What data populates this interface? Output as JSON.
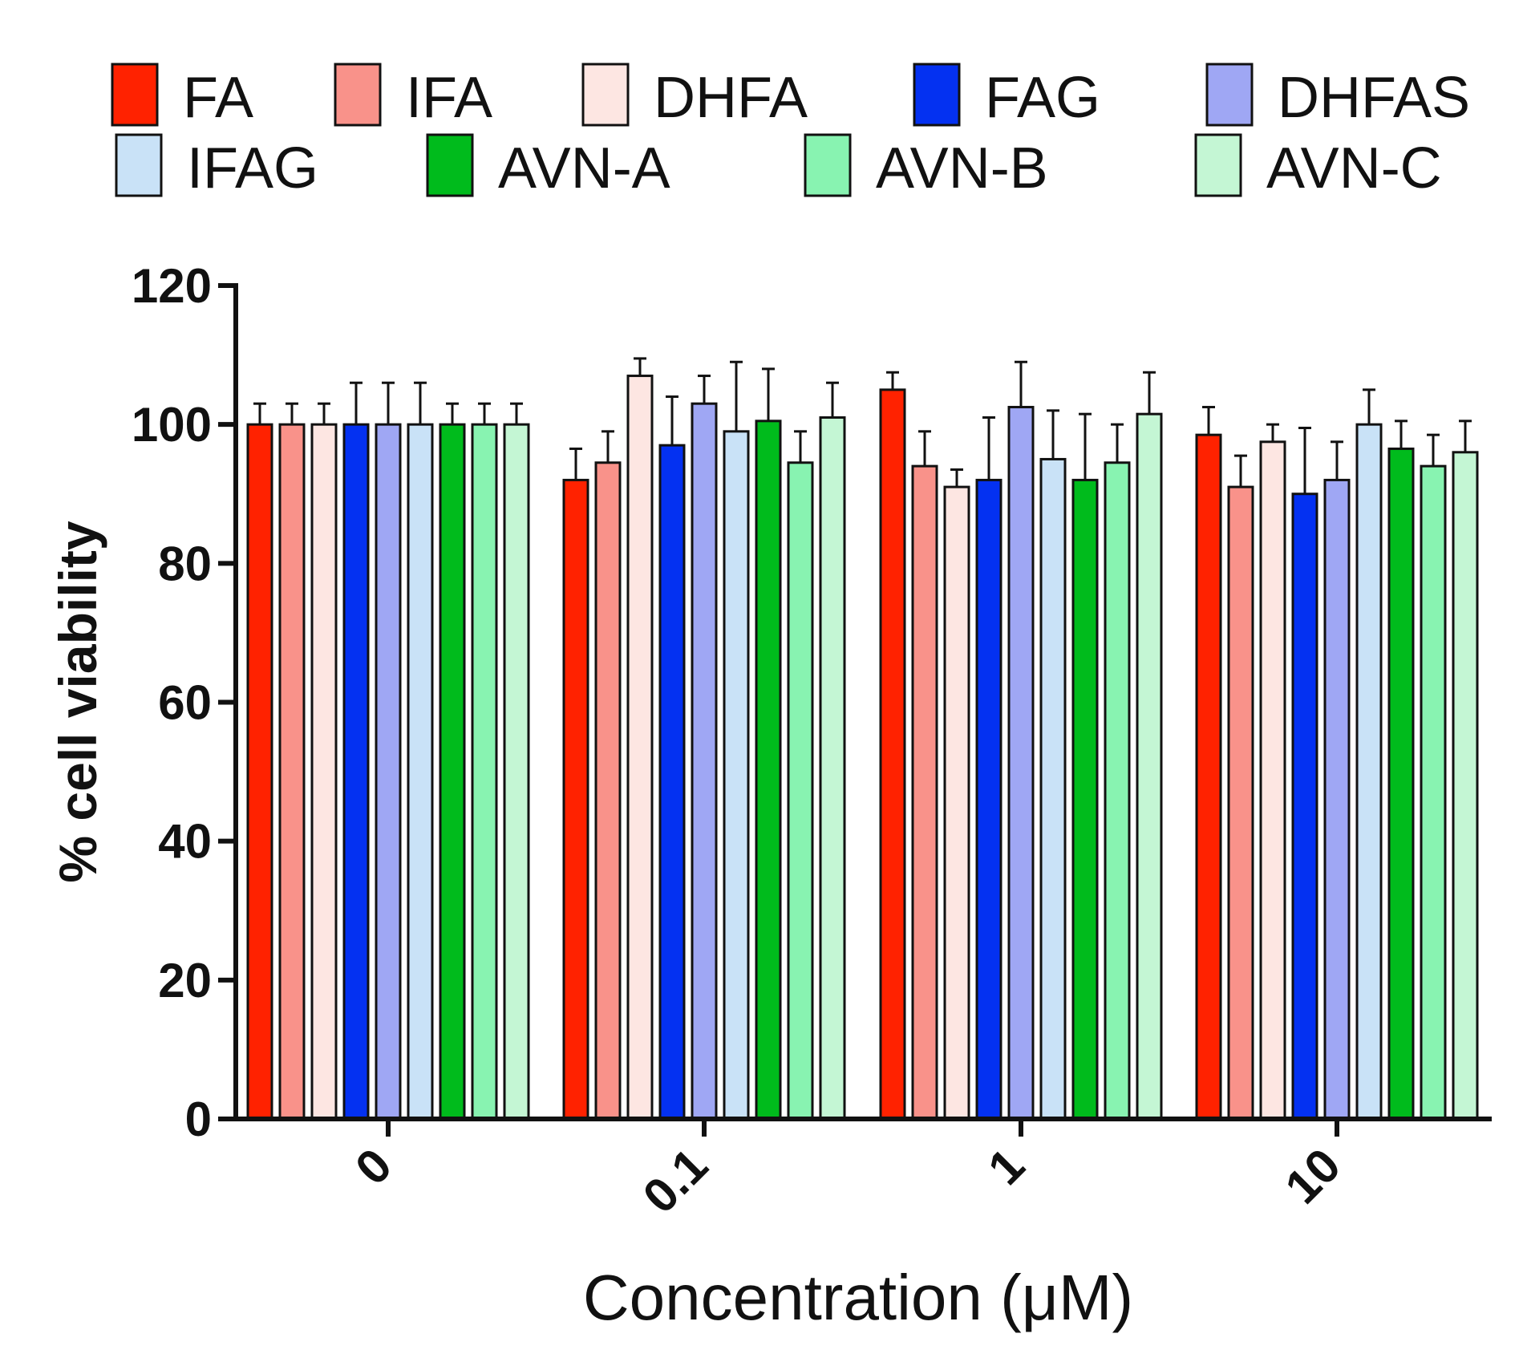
{
  "chart_data": {
    "type": "bar",
    "title": "",
    "xlabel": "Concentration (μM)",
    "ylabel": "% cell viability",
    "ylim": [
      0,
      120
    ],
    "yticks": [
      0,
      20,
      40,
      60,
      80,
      100,
      120
    ],
    "yticks_labels": [
      "0",
      "20",
      "40",
      "60",
      "80",
      "100",
      "120"
    ],
    "categories": [
      "0",
      "0.1",
      "1",
      "10"
    ],
    "legend_position": "top",
    "series": [
      {
        "name": "FA",
        "color": "#ff2200",
        "values": [
          100,
          92,
          105,
          98.5
        ],
        "errors": [
          3,
          4.5,
          2.5,
          4
        ]
      },
      {
        "name": "IFA",
        "color": "#f9928a",
        "values": [
          100,
          94.5,
          94,
          91
        ],
        "errors": [
          3,
          4.5,
          5,
          4.5
        ]
      },
      {
        "name": "DHFA",
        "color": "#fde6e2",
        "values": [
          100,
          107,
          91,
          97.5
        ],
        "errors": [
          3,
          2.5,
          2.5,
          2.5
        ]
      },
      {
        "name": "FAG",
        "color": "#0431f1",
        "values": [
          100,
          97,
          92,
          90
        ],
        "errors": [
          6,
          7,
          9,
          9.5
        ]
      },
      {
        "name": "DHFAS",
        "color": "#9fa7f4",
        "values": [
          100,
          103,
          102.5,
          92
        ],
        "errors": [
          6,
          4,
          6.5,
          5.5
        ]
      },
      {
        "name": "IFAG",
        "color": "#c9e2f7",
        "values": [
          100,
          99,
          95,
          100
        ],
        "errors": [
          6,
          10,
          7,
          5
        ]
      },
      {
        "name": "AVN-A",
        "color": "#00bb1c",
        "values": [
          100,
          100.5,
          92,
          96.5
        ],
        "errors": [
          3,
          7.5,
          9.5,
          4
        ]
      },
      {
        "name": "AVN-B",
        "color": "#88f3b1",
        "values": [
          100,
          94.5,
          94.5,
          94
        ],
        "errors": [
          3,
          4.5,
          5.5,
          4.5
        ]
      },
      {
        "name": "AVN-C",
        "color": "#c4f6d4",
        "values": [
          100,
          101,
          101.5,
          96
        ],
        "errors": [
          3,
          5,
          6,
          4.5
        ]
      }
    ]
  }
}
